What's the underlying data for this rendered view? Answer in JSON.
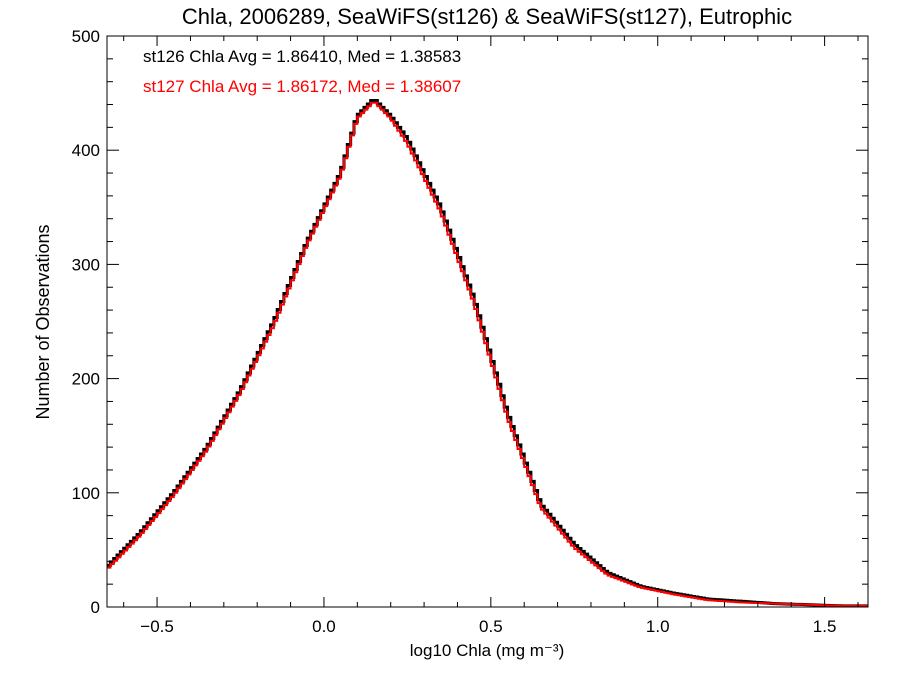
{
  "chart_data": {
    "type": "line",
    "style": "histogram-step",
    "title": "Chla, 2006289, SeaWiFS(st126) & SeaWiFS(st127), Eutrophic",
    "xlabel": "log10 Chla (mg m⁻³)",
    "ylabel": "Number of Observations",
    "xlim": [
      -0.65,
      1.63
    ],
    "ylim": [
      0,
      500
    ],
    "xticks": [
      -0.5,
      0.0,
      0.5,
      1.0,
      1.5
    ],
    "xtick_labels": [
      "−0.5",
      "0.0",
      "0.5",
      "1.0",
      "1.5"
    ],
    "yticks": [
      0,
      100,
      200,
      300,
      400,
      500
    ],
    "ytick_labels": [
      "0",
      "100",
      "200",
      "300",
      "400",
      "500"
    ],
    "grid": false,
    "annotations": [
      {
        "text": "st126 Chla Avg = 1.86410, Med = 1.38583",
        "color": "#000000"
      },
      {
        "text": "st127 Chla Avg = 1.86172, Med = 1.38607",
        "color": "#ff0000"
      }
    ],
    "x": [
      -0.65,
      -0.55,
      -0.45,
      -0.35,
      -0.25,
      -0.15,
      -0.05,
      0.05,
      0.1,
      0.15,
      0.2,
      0.25,
      0.35,
      0.45,
      0.55,
      0.65,
      0.75,
      0.85,
      0.95,
      1.05,
      1.15,
      1.25,
      1.35,
      1.45,
      1.55,
      1.63
    ],
    "series": [
      {
        "color": "#000000",
        "values": [
          35,
          65,
          100,
          140,
          190,
          250,
          320,
          380,
          430,
          445,
          430,
          410,
          350,
          270,
          170,
          90,
          55,
          30,
          18,
          12,
          7,
          5,
          3,
          2,
          1,
          1
        ]
      },
      {
        "color": "#ff0000",
        "values": [
          33,
          63,
          98,
          138,
          188,
          247,
          318,
          378,
          428,
          443,
          428,
          406,
          346,
          266,
          166,
          87,
          52,
          28,
          17,
          11,
          6,
          4,
          3,
          2,
          1,
          1
        ]
      }
    ]
  }
}
